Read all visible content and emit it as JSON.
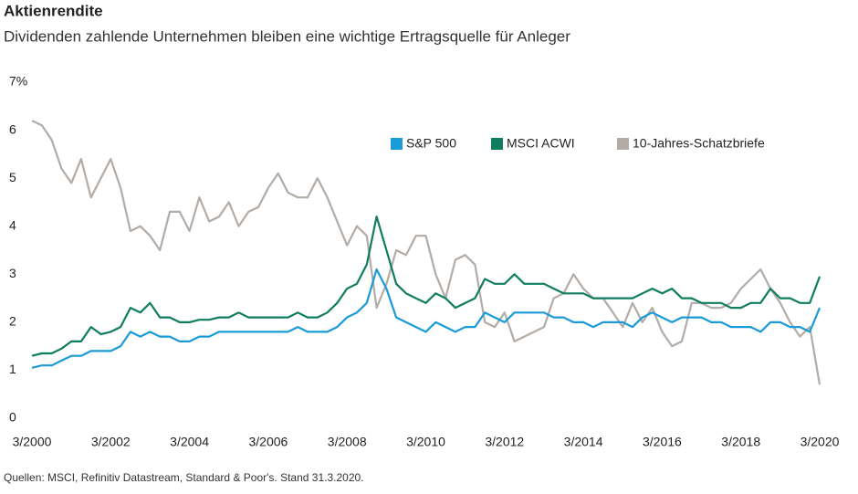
{
  "chart_data": {
    "type": "line",
    "title": "Aktienrendite",
    "subtitle": "Dividenden zahlende Unternehmen bleiben eine wichtige Ertragsquelle für Anleger",
    "source": "Quellen: MSCI, Refinitiv Datastream, Standard & Poor's. Stand 31.3.2020.",
    "x": [
      2000.17,
      2000.42,
      2000.67,
      2000.92,
      2001.17,
      2001.42,
      2001.67,
      2001.92,
      2002.17,
      2002.42,
      2002.67,
      2002.92,
      2003.17,
      2003.42,
      2003.67,
      2003.92,
      2004.17,
      2004.42,
      2004.67,
      2004.92,
      2005.17,
      2005.42,
      2005.67,
      2005.92,
      2006.17,
      2006.42,
      2006.67,
      2006.92,
      2007.17,
      2007.42,
      2007.67,
      2007.92,
      2008.17,
      2008.42,
      2008.67,
      2008.92,
      2009.17,
      2009.42,
      2009.67,
      2009.92,
      2010.17,
      2010.42,
      2010.67,
      2010.92,
      2011.17,
      2011.42,
      2011.67,
      2011.92,
      2012.17,
      2012.42,
      2012.67,
      2012.92,
      2013.17,
      2013.42,
      2013.67,
      2013.92,
      2014.17,
      2014.42,
      2014.67,
      2014.92,
      2015.17,
      2015.42,
      2015.67,
      2015.92,
      2016.17,
      2016.42,
      2016.67,
      2016.92,
      2017.17,
      2017.42,
      2017.67,
      2017.92,
      2018.17,
      2018.42,
      2018.67,
      2018.92,
      2019.17,
      2019.42,
      2019.67,
      2019.92,
      2020.17
    ],
    "series": [
      {
        "name": "S&P 500",
        "color": "#1a9bd7",
        "values": [
          1.05,
          1.1,
          1.1,
          1.2,
          1.3,
          1.3,
          1.4,
          1.4,
          1.4,
          1.5,
          1.8,
          1.7,
          1.8,
          1.7,
          1.7,
          1.6,
          1.6,
          1.7,
          1.7,
          1.8,
          1.8,
          1.8,
          1.8,
          1.8,
          1.8,
          1.8,
          1.8,
          1.9,
          1.8,
          1.8,
          1.8,
          1.9,
          2.1,
          2.2,
          2.4,
          3.1,
          2.7,
          2.1,
          2.0,
          1.9,
          1.8,
          2.0,
          1.9,
          1.8,
          1.9,
          1.9,
          2.2,
          2.1,
          2.0,
          2.2,
          2.2,
          2.2,
          2.2,
          2.1,
          2.1,
          2.0,
          2.0,
          1.9,
          2.0,
          2.0,
          2.0,
          1.9,
          2.1,
          2.2,
          2.1,
          2.0,
          2.1,
          2.1,
          2.1,
          2.0,
          2.0,
          1.9,
          1.9,
          1.9,
          1.8,
          2.0,
          2.0,
          1.9,
          1.9,
          1.8,
          2.3
        ]
      },
      {
        "name": "MSCI ACWI",
        "color": "#0f7d5e",
        "values": [
          1.3,
          1.35,
          1.35,
          1.45,
          1.6,
          1.6,
          1.9,
          1.75,
          1.8,
          1.9,
          2.3,
          2.2,
          2.4,
          2.1,
          2.1,
          2.0,
          2.0,
          2.05,
          2.05,
          2.1,
          2.1,
          2.2,
          2.1,
          2.1,
          2.1,
          2.1,
          2.1,
          2.2,
          2.1,
          2.1,
          2.2,
          2.4,
          2.7,
          2.8,
          3.2,
          4.2,
          3.5,
          2.8,
          2.6,
          2.5,
          2.4,
          2.6,
          2.5,
          2.3,
          2.4,
          2.5,
          2.9,
          2.8,
          2.8,
          3.0,
          2.8,
          2.8,
          2.8,
          2.7,
          2.6,
          2.6,
          2.6,
          2.5,
          2.5,
          2.5,
          2.5,
          2.5,
          2.6,
          2.7,
          2.6,
          2.7,
          2.5,
          2.5,
          2.4,
          2.4,
          2.4,
          2.3,
          2.3,
          2.4,
          2.4,
          2.7,
          2.5,
          2.5,
          2.4,
          2.4,
          2.95
        ]
      },
      {
        "name": "10-Jahres-Schatzbriefe",
        "color": "#b3aca6",
        "values": [
          6.2,
          6.1,
          5.8,
          5.2,
          4.9,
          5.4,
          4.6,
          5.0,
          5.4,
          4.8,
          3.9,
          4.0,
          3.8,
          3.5,
          4.3,
          4.3,
          3.9,
          4.6,
          4.1,
          4.2,
          4.5,
          4.0,
          4.3,
          4.4,
          4.8,
          5.1,
          4.7,
          4.6,
          4.6,
          5.0,
          4.6,
          4.1,
          3.6,
          4.0,
          3.8,
          2.3,
          2.8,
          3.5,
          3.4,
          3.8,
          3.8,
          3.0,
          2.5,
          3.3,
          3.4,
          3.2,
          2.0,
          1.9,
          2.2,
          1.6,
          1.7,
          1.8,
          1.9,
          2.5,
          2.6,
          3.0,
          2.7,
          2.5,
          2.5,
          2.2,
          1.9,
          2.4,
          2.0,
          2.3,
          1.8,
          1.5,
          1.6,
          2.4,
          2.4,
          2.3,
          2.3,
          2.4,
          2.7,
          2.9,
          3.1,
          2.7,
          2.4,
          2.0,
          1.7,
          1.9,
          0.7
        ]
      }
    ],
    "xlim": [
      2000.17,
      2020.17
    ],
    "xticks": [
      {
        "value": 2000.17,
        "label": "3/2000"
      },
      {
        "value": 2002.17,
        "label": "3/2002"
      },
      {
        "value": 2004.17,
        "label": "3/2004"
      },
      {
        "value": 2006.17,
        "label": "3/2006"
      },
      {
        "value": 2008.17,
        "label": "3/2008"
      },
      {
        "value": 2010.17,
        "label": "3/2010"
      },
      {
        "value": 2012.17,
        "label": "3/2012"
      },
      {
        "value": 2014.17,
        "label": "3/2014"
      },
      {
        "value": 2016.17,
        "label": "3/2016"
      },
      {
        "value": 2018.17,
        "label": "3/2018"
      },
      {
        "value": 2020.17,
        "label": "3/2020"
      }
    ],
    "ylim": [
      0,
      7
    ],
    "yticks": [
      0,
      1,
      2,
      3,
      4,
      5,
      6,
      {
        "value": 7,
        "label": "7%"
      }
    ],
    "grid": false
  }
}
